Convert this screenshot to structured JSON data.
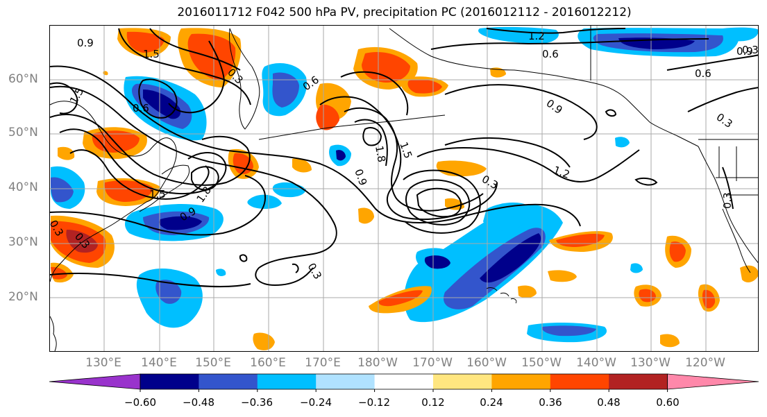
{
  "title": "2016011712 F042 500 hPa PV, precipitation PC (2016012112 - 2016012212)",
  "lat_labels": [
    "60°N",
    "50°N",
    "40°N",
    "30°N",
    "20°N"
  ],
  "lon_labels": [
    "130°E",
    "140°E",
    "150°E",
    "160°E",
    "170°E",
    "180°W",
    "170°W",
    "160°W",
    "150°W",
    "140°W",
    "130°W",
    "120°W"
  ],
  "colorbar": {
    "tick_labels": [
      "−0.60",
      "−0.48",
      "−0.36",
      "−0.24",
      "−0.12",
      "0.12",
      "0.24",
      "0.36",
      "0.48",
      "0.60"
    ],
    "levels": [
      -0.6,
      -0.48,
      -0.36,
      -0.24,
      -0.12,
      0.12,
      0.24,
      0.36,
      0.48,
      0.6
    ],
    "colors": [
      "#9933cc",
      "#00008b",
      "#3355cc",
      "#00bfff",
      "#b0e2ff",
      "#ffffff",
      "#ffe680",
      "#ffa500",
      "#ff4500",
      "#b22222",
      "#ff88aa"
    ]
  },
  "contour_labels": [
    "0.9",
    "1.5",
    "0.3",
    "0.6",
    "1.2",
    "0.3",
    "0.6",
    "0.9",
    "0.6",
    "0.3",
    "0.3",
    "1.2",
    "0.9",
    "0.3",
    "1.5",
    "1.8",
    "0.9",
    "0.3",
    "1.8",
    "1.5",
    "0.3",
    "1.5",
    "0.6",
    "0.9",
    "0.3"
  ],
  "icons": {
    "colorbar-extend-min": "triangle-left",
    "colorbar-extend-max": "triangle-right"
  }
}
